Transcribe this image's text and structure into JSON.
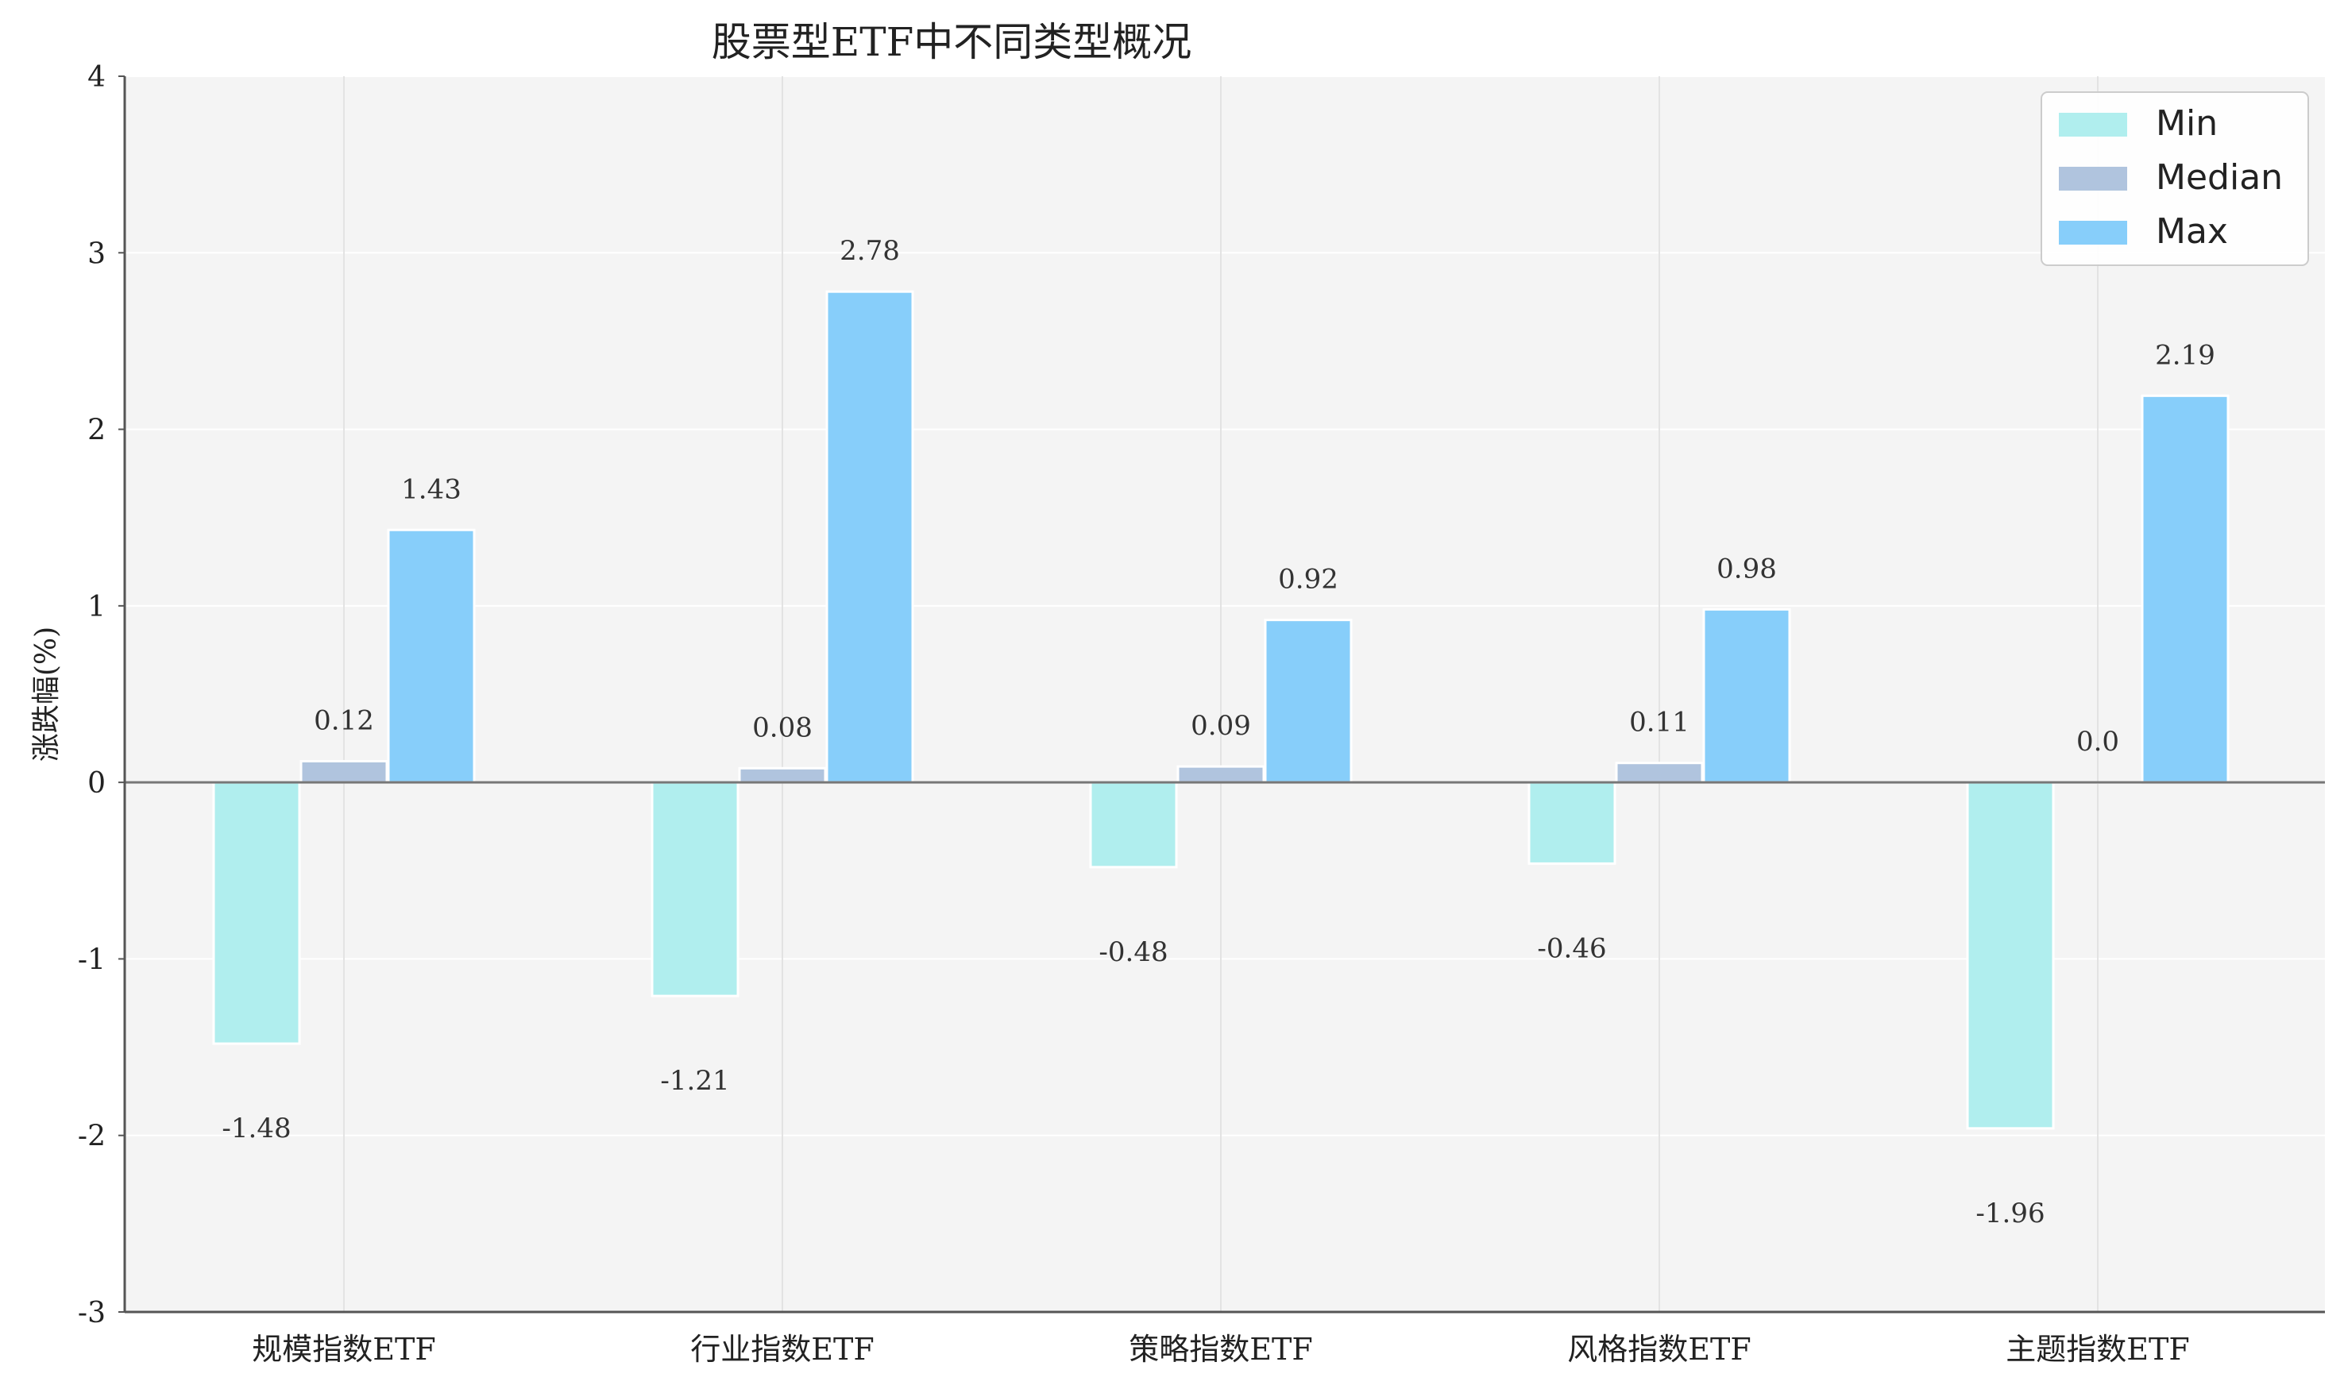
{
  "chart_data": {
    "type": "bar",
    "title": "股票型ETF中不同类型概况",
    "xlabel": "",
    "ylabel": "涨跌幅(%)",
    "categories": [
      "规模指数ETF",
      "行业指数ETF",
      "策略指数ETF",
      "风格指数ETF",
      "主题指数ETF"
    ],
    "series": [
      {
        "name": "Min",
        "color": "#b0eeee",
        "values": [
          -1.48,
          -1.21,
          -0.48,
          -0.46,
          -1.96
        ]
      },
      {
        "name": "Median",
        "color": "#b0c4de",
        "values": [
          0.12,
          0.08,
          0.09,
          0.11,
          0.0
        ]
      },
      {
        "name": "Max",
        "color": "#87cefa",
        "values": [
          1.43,
          2.78,
          0.92,
          0.98,
          2.19
        ]
      }
    ],
    "data_labels": [
      [
        "-1.48",
        "-1.21",
        "-0.48",
        "-0.46",
        "-1.96"
      ],
      [
        "0.12",
        "0.08",
        "0.09",
        "0.11",
        "0.0"
      ],
      [
        "1.43",
        "2.78",
        "0.92",
        "0.98",
        "2.19"
      ]
    ],
    "ylim": [
      -3,
      4
    ],
    "yticks": [
      "-3",
      "-2",
      "-1",
      "0",
      "1",
      "2",
      "3",
      "4"
    ],
    "grid": true,
    "legend_position": "top-right",
    "colors": {
      "plot_background": "#f4f4f4",
      "grid": "#ffffff",
      "axis": "#555555"
    }
  }
}
